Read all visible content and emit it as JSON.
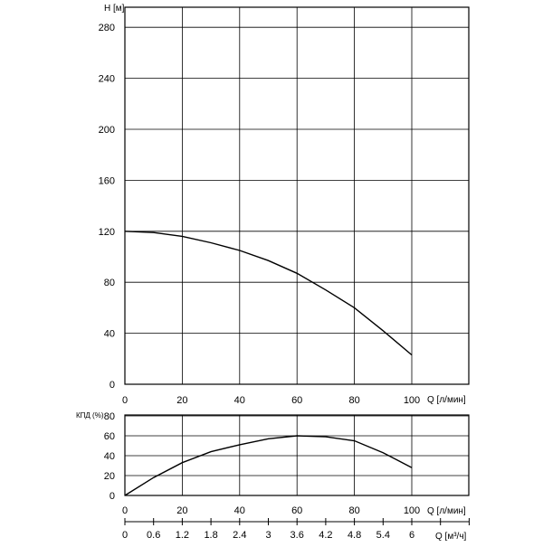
{
  "chart_data": [
    {
      "type": "line",
      "ylabel": "H [м]",
      "xlabel": "Q [л/мин]",
      "xlim": [
        0,
        120
      ],
      "ylim": [
        0,
        290
      ],
      "x_ticks": [
        "0",
        "20",
        "40",
        "60",
        "80",
        "100"
      ],
      "y_ticks": [
        "0",
        "40",
        "80",
        "120",
        "160",
        "200",
        "240",
        "280"
      ],
      "grid": true,
      "series": [
        {
          "x": [
            0,
            10,
            20,
            30,
            40,
            50,
            60,
            70,
            80,
            90,
            100
          ],
          "y": [
            120,
            119,
            116,
            111,
            105,
            97,
            87,
            74,
            60,
            42,
            23
          ]
        }
      ]
    },
    {
      "type": "line",
      "ylabel": "КПД (%)",
      "xlabel": "Q [л/мин]",
      "xlim": [
        0,
        120
      ],
      "ylim": [
        0,
        80
      ],
      "x_ticks": [
        "0",
        "20",
        "40",
        "60",
        "80",
        "100"
      ],
      "y_ticks": [
        "0",
        "20",
        "40",
        "60",
        "80"
      ],
      "grid": true,
      "series": [
        {
          "x": [
            0,
            10,
            20,
            30,
            40,
            50,
            60,
            70,
            80,
            90,
            100
          ],
          "y": [
            0,
            18,
            33,
            44,
            51,
            57,
            60,
            59,
            55,
            43,
            28
          ]
        }
      ]
    },
    {
      "type": "axis",
      "xlabel": "Q [м³/ч]",
      "ticks": [
        {
          "label": "0",
          "value": 0
        },
        {
          "label": "0.6",
          "value": 0.6
        },
        {
          "label": "1.2",
          "value": 1.2
        },
        {
          "label": "1.8",
          "value": 1.8
        },
        {
          "label": "2.4",
          "value": 2.4
        },
        {
          "label": "3",
          "value": 3
        },
        {
          "label": "3.6",
          "value": 3.6
        },
        {
          "label": "4.2",
          "value": 4.2
        },
        {
          "label": "4.8",
          "value": 4.8
        },
        {
          "label": "5.4",
          "value": 5.4
        },
        {
          "label": "6",
          "value": 6
        },
        {
          "label": "",
          "value": 6.6
        },
        {
          "label": "",
          "value": 7.2
        }
      ]
    }
  ]
}
